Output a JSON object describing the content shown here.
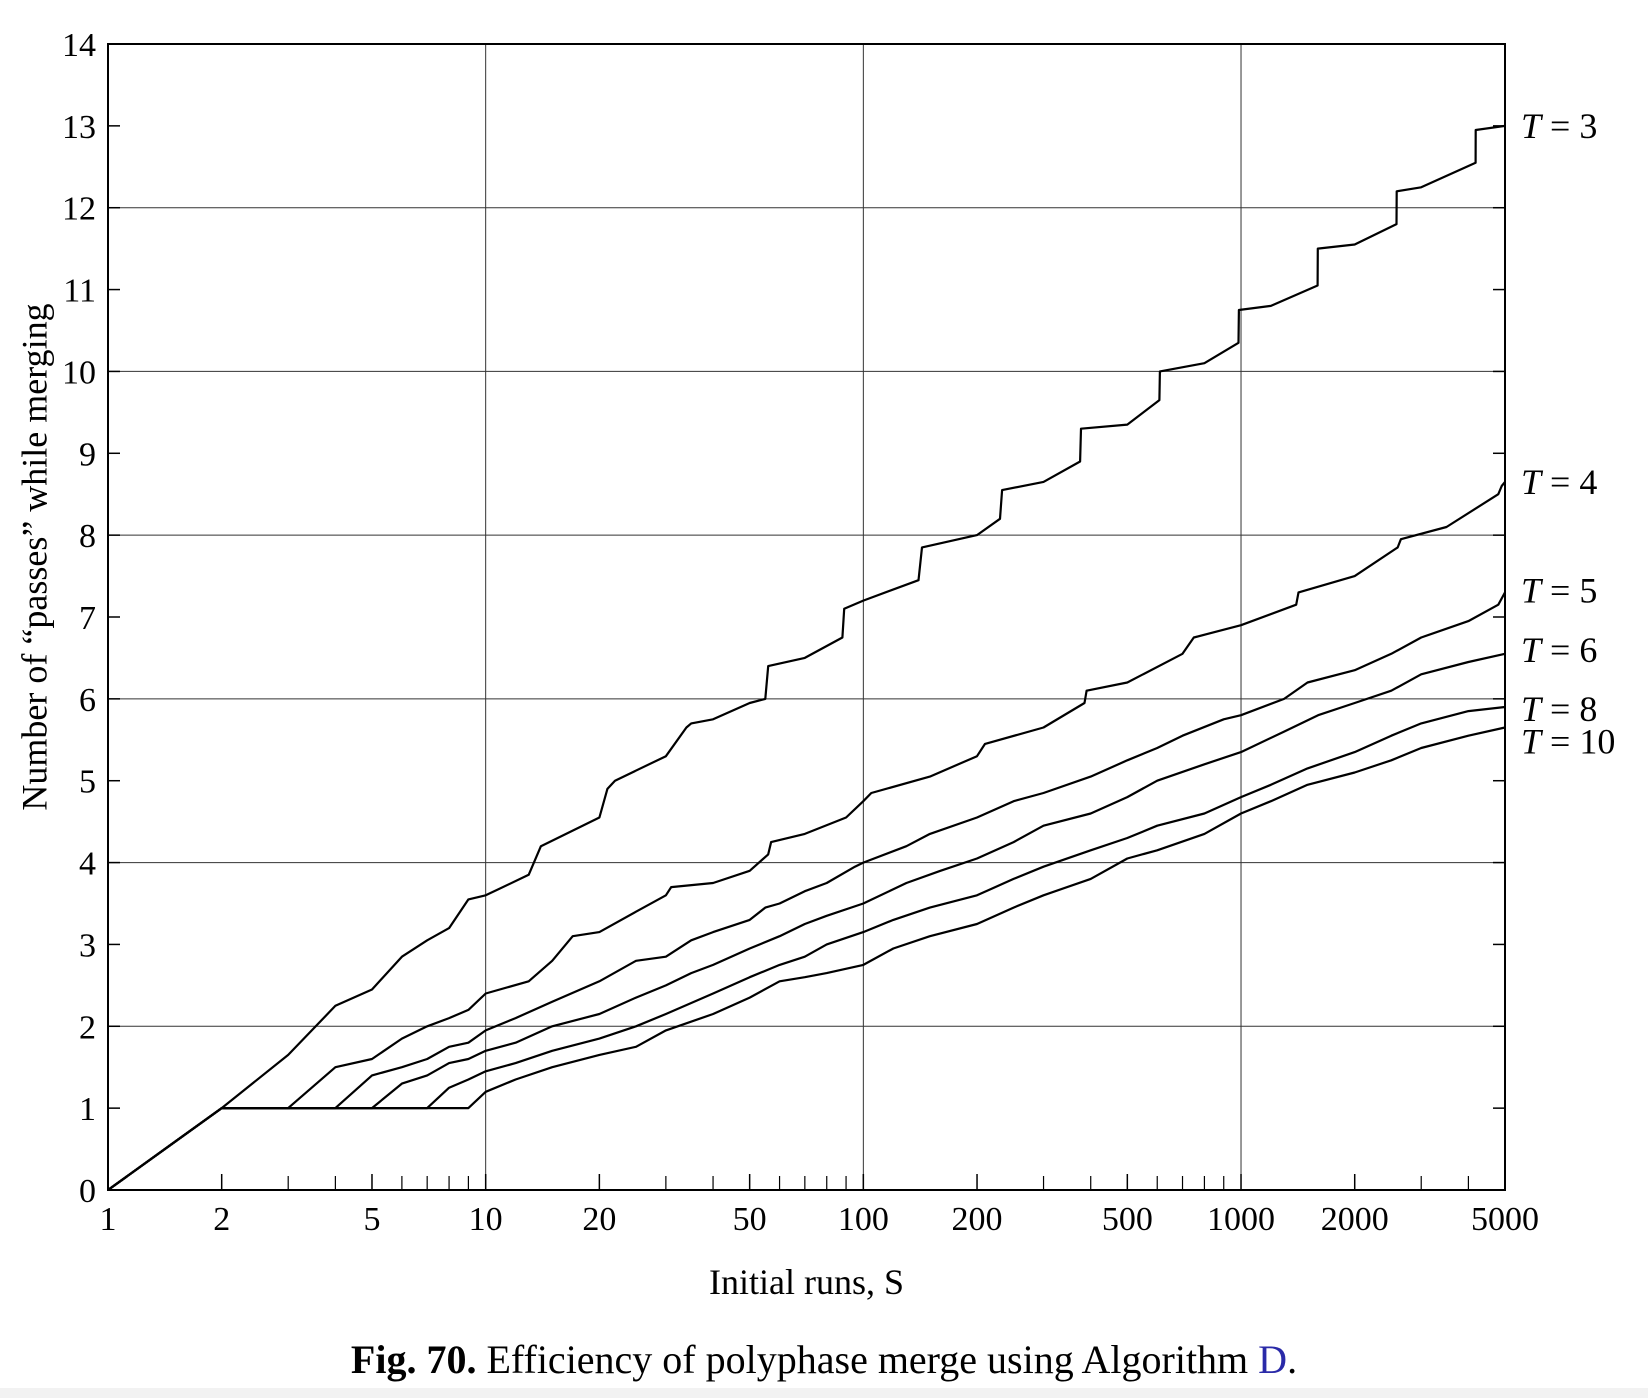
{
  "figure": {
    "caption_label": "Fig. 70.",
    "caption_text": " Efficiency of polyphase merge using Algorithm ",
    "caption_link": "D",
    "caption_end": "."
  },
  "chart_data": {
    "type": "line",
    "title": "",
    "xlabel": "Initial runs, S",
    "ylabel": "Number of “passes” while merging",
    "xscale": "log",
    "xlim": [
      1,
      5000
    ],
    "ylim": [
      0,
      14
    ],
    "x_ticks": [
      1,
      2,
      5,
      10,
      20,
      50,
      100,
      200,
      500,
      1000,
      2000,
      5000
    ],
    "x_minor_ticks": [
      3,
      4,
      6,
      7,
      8,
      9,
      30,
      40,
      60,
      70,
      80,
      90,
      300,
      400,
      600,
      700,
      800,
      900,
      3000,
      4000
    ],
    "y_ticks": [
      0,
      1,
      2,
      3,
      4,
      5,
      6,
      7,
      8,
      9,
      10,
      11,
      12,
      13,
      14
    ],
    "grid_x": [
      10,
      100,
      1000
    ],
    "grid_y": [
      2,
      4,
      6,
      8,
      10,
      12
    ],
    "series": [
      {
        "name": "T = 3",
        "label_var": "T",
        "label_val": "3",
        "x": [
          1,
          2,
          3,
          4,
          5,
          6,
          7,
          8,
          9,
          10,
          13,
          14,
          20,
          21,
          22,
          30,
          34,
          35,
          40,
          50,
          55,
          56,
          70,
          88,
          89,
          100,
          140,
          143,
          200,
          230,
          233,
          300,
          375,
          377,
          500,
          608,
          610,
          800,
          985,
          987,
          1200,
          1595,
          1597,
          2000,
          2580,
          2584,
          3000,
          4180,
          4181,
          5000
        ],
        "y": [
          0,
          1,
          1.65,
          2.25,
          2.45,
          2.85,
          3.05,
          3.2,
          3.55,
          3.6,
          3.85,
          4.2,
          4.55,
          4.9,
          5.0,
          5.3,
          5.65,
          5.7,
          5.75,
          5.95,
          6.0,
          6.4,
          6.5,
          6.75,
          7.1,
          7.2,
          7.45,
          7.85,
          8.0,
          8.2,
          8.55,
          8.65,
          8.9,
          9.3,
          9.35,
          9.65,
          10.0,
          10.1,
          10.35,
          10.75,
          10.8,
          11.05,
          11.5,
          11.55,
          11.8,
          12.2,
          12.25,
          12.55,
          12.95,
          13.0
        ]
      },
      {
        "name": "T = 4",
        "label_var": "T",
        "label_val": "4",
        "x": [
          1,
          2,
          3,
          4,
          5,
          6,
          7,
          8,
          9,
          10,
          13,
          15,
          17,
          20,
          25,
          30,
          31,
          40,
          50,
          56,
          57,
          70,
          90,
          100,
          105,
          150,
          200,
          210,
          300,
          385,
          390,
          500,
          700,
          750,
          1000,
          1400,
          1420,
          2000,
          2600,
          2650,
          3500,
          4800,
          4900,
          5000
        ],
        "y": [
          0,
          1,
          1,
          1.5,
          1.6,
          1.85,
          2.0,
          2.1,
          2.2,
          2.4,
          2.55,
          2.8,
          3.1,
          3.15,
          3.4,
          3.6,
          3.7,
          3.75,
          3.9,
          4.1,
          4.25,
          4.35,
          4.55,
          4.75,
          4.85,
          5.05,
          5.3,
          5.45,
          5.65,
          5.95,
          6.1,
          6.2,
          6.55,
          6.75,
          6.9,
          7.15,
          7.3,
          7.5,
          7.85,
          7.95,
          8.1,
          8.5,
          8.6,
          8.65
        ]
      },
      {
        "name": "T = 5",
        "label_var": "T",
        "label_val": "5",
        "x": [
          1,
          2,
          4,
          5,
          6,
          7,
          8,
          9,
          10,
          12,
          15,
          20,
          25,
          30,
          35,
          40,
          50,
          55,
          60,
          70,
          80,
          95,
          100,
          130,
          150,
          200,
          250,
          300,
          400,
          500,
          600,
          700,
          900,
          1000,
          1300,
          1500,
          2000,
          2500,
          3000,
          4000,
          4800,
          5000
        ],
        "y": [
          0,
          1,
          1,
          1.4,
          1.5,
          1.6,
          1.75,
          1.8,
          1.95,
          2.1,
          2.3,
          2.55,
          2.8,
          2.85,
          3.05,
          3.15,
          3.3,
          3.45,
          3.5,
          3.65,
          3.75,
          3.95,
          4.0,
          4.2,
          4.35,
          4.55,
          4.75,
          4.85,
          5.05,
          5.25,
          5.4,
          5.55,
          5.75,
          5.8,
          6.0,
          6.2,
          6.35,
          6.55,
          6.75,
          6.95,
          7.15,
          7.3
        ]
      },
      {
        "name": "T = 6",
        "label_var": "T",
        "label_val": "6",
        "x": [
          1,
          2,
          5,
          6,
          7,
          8,
          9,
          10,
          12,
          15,
          20,
          25,
          30,
          35,
          40,
          50,
          60,
          70,
          80,
          100,
          130,
          160,
          200,
          250,
          300,
          400,
          500,
          600,
          800,
          1000,
          1300,
          1600,
          2000,
          2500,
          3000,
          4000,
          5000
        ],
        "y": [
          0,
          1,
          1,
          1.3,
          1.4,
          1.55,
          1.6,
          1.7,
          1.8,
          2.0,
          2.15,
          2.35,
          2.5,
          2.65,
          2.75,
          2.95,
          3.1,
          3.25,
          3.35,
          3.5,
          3.75,
          3.9,
          4.05,
          4.25,
          4.45,
          4.6,
          4.8,
          5.0,
          5.2,
          5.35,
          5.6,
          5.8,
          5.95,
          6.1,
          6.3,
          6.45,
          6.55
        ]
      },
      {
        "name": "T = 8",
        "label_var": "T",
        "label_val": "8",
        "x": [
          1,
          2,
          7,
          8,
          9,
          10,
          12,
          15,
          20,
          25,
          30,
          40,
          50,
          60,
          70,
          80,
          100,
          120,
          150,
          200,
          250,
          300,
          400,
          500,
          600,
          800,
          1000,
          1200,
          1500,
          2000,
          2500,
          3000,
          4000,
          5000
        ],
        "y": [
          0,
          1,
          1,
          1.25,
          1.35,
          1.45,
          1.55,
          1.7,
          1.85,
          2.0,
          2.15,
          2.4,
          2.6,
          2.75,
          2.85,
          3.0,
          3.15,
          3.3,
          3.45,
          3.6,
          3.8,
          3.95,
          4.15,
          4.3,
          4.45,
          4.6,
          4.8,
          4.95,
          5.15,
          5.35,
          5.55,
          5.7,
          5.85,
          5.9
        ]
      },
      {
        "name": "T = 10",
        "label_var": "T",
        "label_val": "10",
        "x": [
          1,
          2,
          9,
          10,
          12,
          15,
          20,
          25,
          30,
          40,
          50,
          60,
          70,
          80,
          100,
          120,
          150,
          200,
          250,
          300,
          400,
          500,
          600,
          800,
          1000,
          1200,
          1500,
          2000,
          2500,
          3000,
          4000,
          5000
        ],
        "y": [
          0,
          1,
          1,
          1.2,
          1.35,
          1.5,
          1.65,
          1.75,
          1.95,
          2.15,
          2.35,
          2.55,
          2.6,
          2.65,
          2.75,
          2.95,
          3.1,
          3.25,
          3.45,
          3.6,
          3.8,
          4.05,
          4.15,
          4.35,
          4.6,
          4.75,
          4.95,
          5.1,
          5.25,
          5.4,
          5.55,
          5.65
        ]
      }
    ]
  }
}
